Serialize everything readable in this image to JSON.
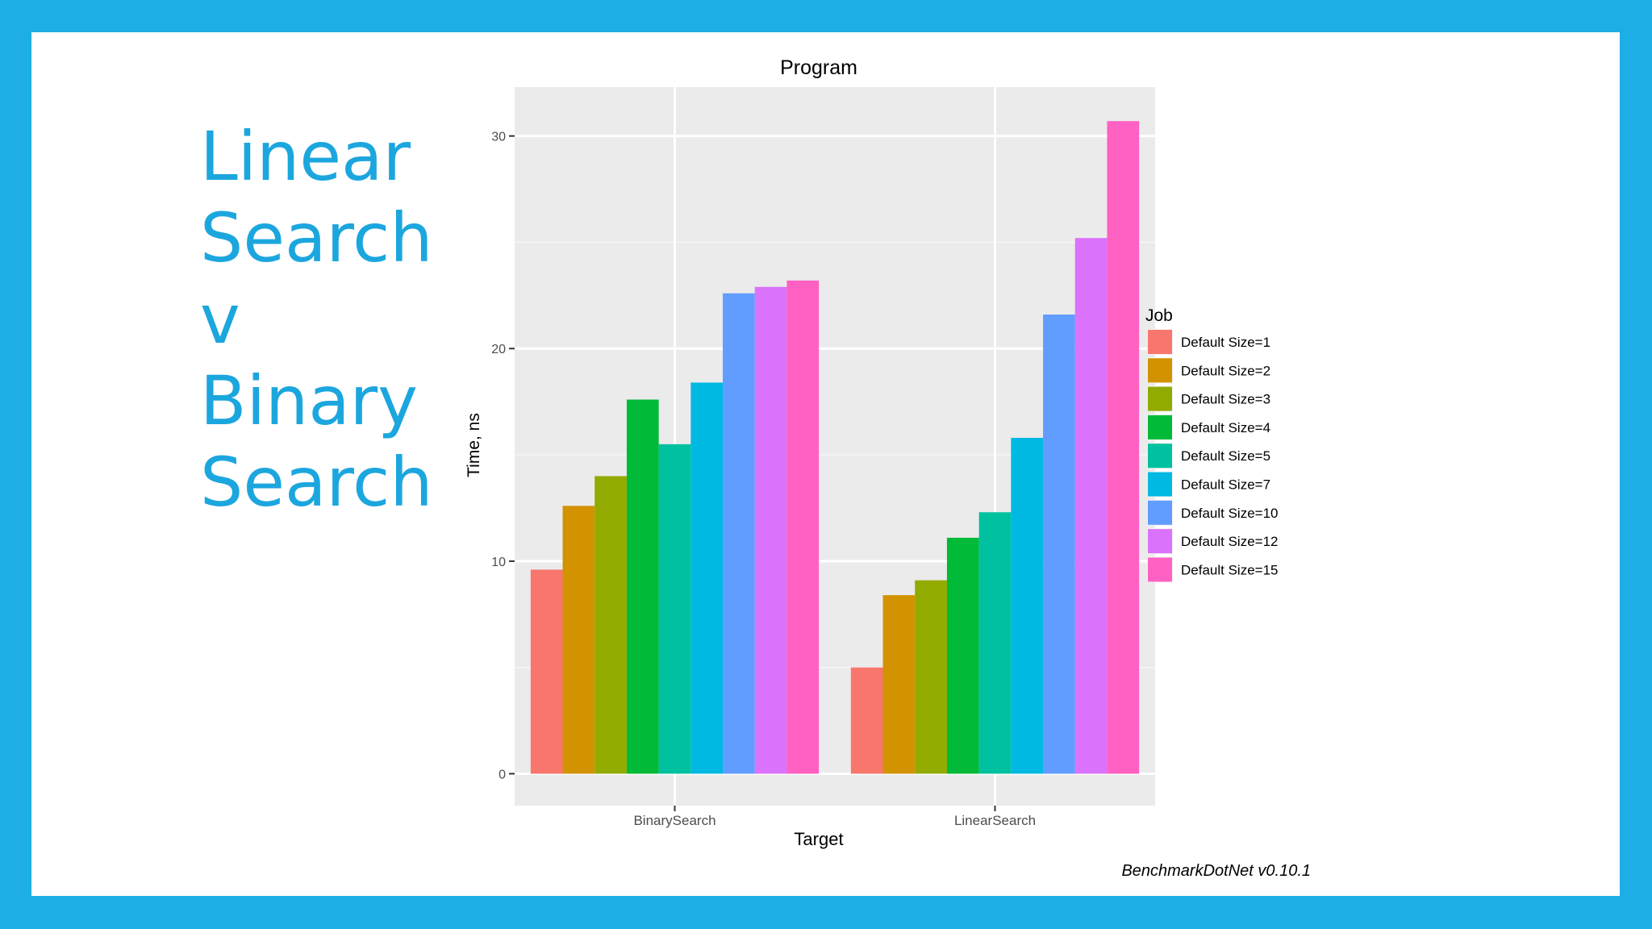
{
  "slide": {
    "title_lines": [
      "Linear",
      "Search",
      "v",
      "Binary",
      "Search"
    ],
    "background_color": "#1CAEE4",
    "title_color": "#1CA6DE"
  },
  "chart_data": {
    "type": "bar",
    "title": "Program",
    "xlabel": "Target",
    "ylabel": "Time, ns",
    "categories": [
      "BinarySearch",
      "LinearSearch"
    ],
    "ylim": [
      -1.5,
      32.3
    ],
    "yticks": [
      0,
      10,
      20,
      30
    ],
    "legend_title": "Job",
    "legend_position": "right",
    "grid": true,
    "footnote": "BenchmarkDotNet v0.10.1",
    "series": [
      {
        "name": "Default Size=1",
        "color": "#F8766D",
        "values": [
          9.6,
          5.0
        ]
      },
      {
        "name": "Default Size=2",
        "color": "#D39200",
        "values": [
          12.6,
          8.4
        ]
      },
      {
        "name": "Default Size=3",
        "color": "#93AA00",
        "values": [
          14.0,
          9.1
        ]
      },
      {
        "name": "Default Size=4",
        "color": "#00BA38",
        "values": [
          17.6,
          11.1
        ]
      },
      {
        "name": "Default Size=5",
        "color": "#00C19F",
        "values": [
          15.5,
          12.3
        ]
      },
      {
        "name": "Default Size=7",
        "color": "#00B9E3",
        "values": [
          18.4,
          15.8
        ]
      },
      {
        "name": "Default Size=10",
        "color": "#619CFF",
        "values": [
          22.6,
          21.6
        ]
      },
      {
        "name": "Default Size=12",
        "color": "#DB72FB",
        "values": [
          22.9,
          25.2
        ]
      },
      {
        "name": "Default Size=15",
        "color": "#FF61C3",
        "values": [
          23.2,
          30.7
        ]
      }
    ]
  }
}
